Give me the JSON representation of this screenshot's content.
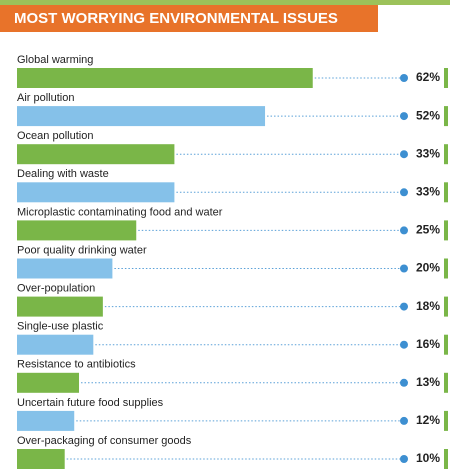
{
  "chart_data": {
    "type": "bar",
    "orientation": "horizontal",
    "title": "MOST WORRYING ENVIRONMENTAL ISSUES",
    "categories": [
      "Global warming",
      "Air pollution",
      "Ocean pollution",
      "Dealing with waste",
      "Microplastic contaminating food and water",
      "Poor quality drinking water",
      "Over-population",
      "Single-use plastic",
      "Resistance to antibiotics",
      "Uncertain future food supplies",
      "Over-packaging of consumer goods"
    ],
    "values": [
      62,
      52,
      33,
      33,
      25,
      20,
      18,
      16,
      13,
      12,
      10
    ],
    "value_labels": [
      "62%",
      "52%",
      "33%",
      "33%",
      "25%",
      "20%",
      "18%",
      "16%",
      "13%",
      "12%",
      "10%"
    ],
    "colors": [
      "#7ab648",
      "#85c1e9",
      "#7ab648",
      "#85c1e9",
      "#7ab648",
      "#85c1e9",
      "#7ab648",
      "#85c1e9",
      "#7ab648",
      "#85c1e9",
      "#7ab648"
    ]
  }
}
